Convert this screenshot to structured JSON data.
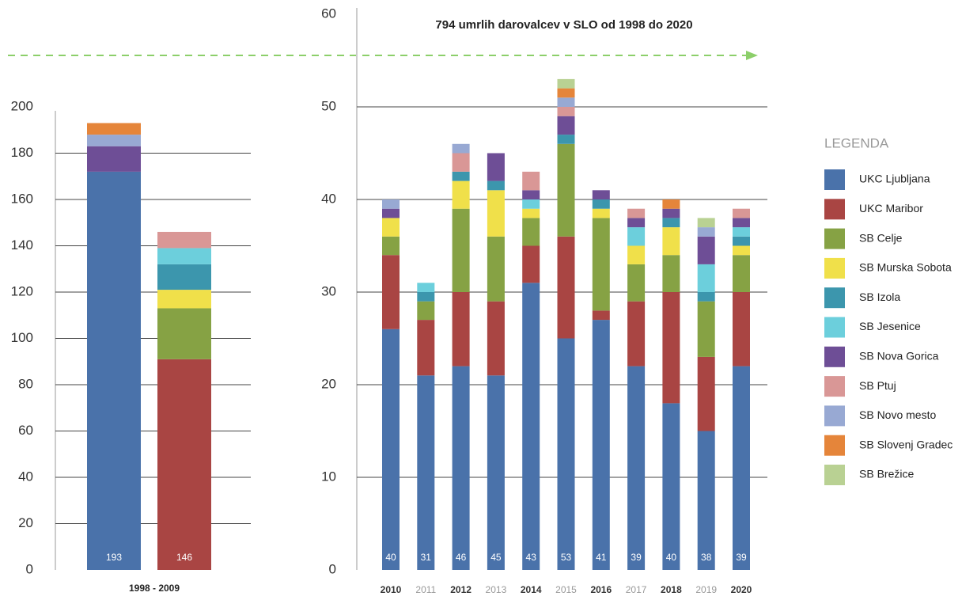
{
  "chart_data": [
    {
      "type": "stacked-bar",
      "xlabel": "1998 - 2009",
      "categories": [
        null,
        null
      ],
      "ylim": [
        0,
        200
      ],
      "yticks": [
        0,
        20,
        40,
        60,
        80,
        100,
        120,
        140,
        160,
        180,
        200
      ],
      "grid": true,
      "totals": [
        193,
        146
      ],
      "series": [
        {
          "name": "UKC Ljubljana",
          "color": "#4a72aa",
          "values": [
            172,
            0
          ]
        },
        {
          "name": "UKC Maribor",
          "color": "#a94543",
          "values": [
            0,
            91
          ]
        },
        {
          "name": "SB Celje",
          "color": "#86a244",
          "values": [
            0,
            22
          ]
        },
        {
          "name": "SB Murska Sobota",
          "color": "#f0e04a",
          "values": [
            0,
            8
          ]
        },
        {
          "name": "SB Izola",
          "color": "#3c96ad",
          "values": [
            0,
            11
          ]
        },
        {
          "name": "SB Jesenice",
          "color": "#6ccfdc",
          "values": [
            0,
            7
          ]
        },
        {
          "name": "SB Nova Gorica",
          "color": "#6e4e96",
          "values": [
            11,
            0
          ]
        },
        {
          "name": "SB Ptuj",
          "color": "#d99796",
          "values": [
            0,
            7
          ]
        },
        {
          "name": "SB Novo mesto",
          "color": "#98a9d3",
          "values": [
            5,
            0
          ]
        },
        {
          "name": "SB Slovenj Gradec",
          "color": "#e5853a",
          "values": [
            5,
            0
          ]
        },
        {
          "name": "SB Brežice",
          "color": "#b9d193",
          "values": [
            0,
            0
          ]
        }
      ]
    },
    {
      "type": "stacked-bar",
      "title": "794 umrlih darovalcev v SLO od 1998 do 2020",
      "legend_title": "LEGENDA",
      "categories": [
        "2010",
        "2011",
        "2012",
        "2013",
        "2014",
        "2015",
        "2016",
        "2017",
        "2018",
        "2019",
        "2020"
      ],
      "ylim": [
        0,
        60
      ],
      "yticks": [
        0,
        10,
        20,
        30,
        40,
        50,
        60
      ],
      "grid": true,
      "totals": [
        40,
        31,
        46,
        45,
        43,
        53,
        41,
        39,
        40,
        38,
        39
      ],
      "series": [
        {
          "name": "UKC Ljubljana",
          "color": "#4a72aa",
          "values": [
            26,
            21,
            22,
            21,
            31,
            25,
            27,
            22,
            18,
            15,
            22
          ]
        },
        {
          "name": "UKC Maribor",
          "color": "#a94543",
          "values": [
            8,
            6,
            8,
            8,
            4,
            11,
            1,
            7,
            12,
            8,
            8
          ]
        },
        {
          "name": "SB Celje",
          "color": "#86a244",
          "values": [
            2,
            2,
            9,
            7,
            3,
            10,
            10,
            4,
            4,
            6,
            4
          ]
        },
        {
          "name": "SB Murska Sobota",
          "color": "#f0e04a",
          "values": [
            2,
            0,
            3,
            5,
            1,
            0,
            1,
            2,
            3,
            0,
            1
          ]
        },
        {
          "name": "SB Izola",
          "color": "#3c96ad",
          "values": [
            0,
            1,
            1,
            1,
            0,
            1,
            1,
            0,
            1,
            1,
            1
          ]
        },
        {
          "name": "SB Jesenice",
          "color": "#6ccfdc",
          "values": [
            0,
            1,
            0,
            0,
            1,
            0,
            0,
            2,
            0,
            3,
            1
          ]
        },
        {
          "name": "SB Nova Gorica",
          "color": "#6e4e96",
          "values": [
            1,
            0,
            0,
            3,
            1,
            2,
            1,
            1,
            1,
            3,
            1
          ]
        },
        {
          "name": "SB Ptuj",
          "color": "#d99796",
          "values": [
            0,
            0,
            2,
            0,
            2,
            1,
            0,
            1,
            0,
            0,
            1
          ]
        },
        {
          "name": "SB Novo mesto",
          "color": "#98a9d3",
          "values": [
            1,
            0,
            1,
            0,
            0,
            1,
            0,
            0,
            0,
            1,
            0
          ]
        },
        {
          "name": "SB Slovenj Gradec",
          "color": "#e5853a",
          "values": [
            0,
            0,
            0,
            0,
            0,
            1,
            0,
            0,
            1,
            0,
            0
          ]
        },
        {
          "name": "SB Brežice",
          "color": "#b9d193",
          "values": [
            0,
            0,
            0,
            0,
            0,
            1,
            0,
            0,
            0,
            1,
            0
          ]
        }
      ]
    }
  ]
}
